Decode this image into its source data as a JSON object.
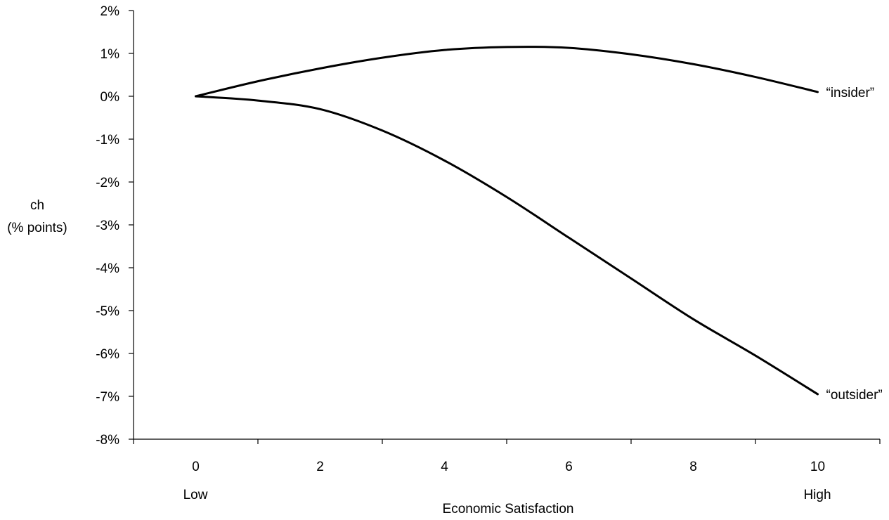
{
  "chart_data": {
    "type": "line",
    "title": "",
    "xlabel": "Economic Satisfaction",
    "ylabel": [
      "ch",
      "(% points)"
    ],
    "x_ticks": [
      "0",
      "2",
      "4",
      "6",
      "8",
      "10"
    ],
    "x_end_labels": {
      "low": "Low",
      "high": "High"
    },
    "y_ticks": [
      "2%",
      "1%",
      "0%",
      "-1%",
      "-2%",
      "-3%",
      "-4%",
      "-5%",
      "-6%",
      "-7%",
      "-8%"
    ],
    "xlim": [
      -1,
      11
    ],
    "ylim": [
      -8,
      2
    ],
    "grid": false,
    "legend": "none",
    "line_color": "#000000",
    "series": [
      {
        "name": "“insider”",
        "x": [
          0,
          1,
          2,
          3,
          4,
          5,
          6,
          7,
          8,
          9,
          10
        ],
        "values": [
          0,
          0.35,
          0.65,
          0.9,
          1.08,
          1.15,
          1.13,
          0.98,
          0.75,
          0.45,
          0.1
        ]
      },
      {
        "name": "“outsider”",
        "x": [
          0,
          1,
          2,
          3,
          4,
          5,
          6,
          7,
          8,
          9,
          10
        ],
        "values": [
          0,
          -0.1,
          -0.3,
          -0.8,
          -1.5,
          -2.35,
          -3.3,
          -4.25,
          -5.2,
          -6.05,
          -6.95
        ]
      }
    ]
  }
}
